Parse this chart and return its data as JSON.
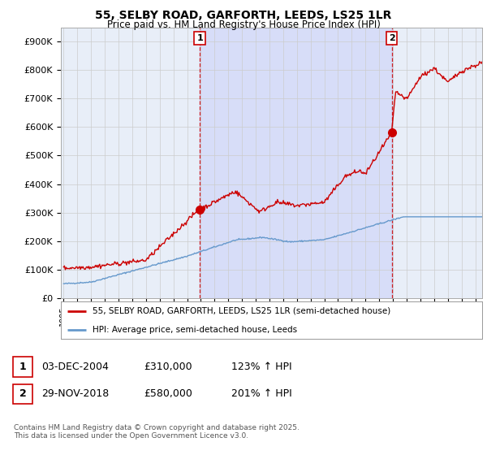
{
  "title": "55, SELBY ROAD, GARFORTH, LEEDS, LS25 1LR",
  "subtitle": "Price paid vs. HM Land Registry's House Price Index (HPI)",
  "ylabel_ticks": [
    "£0",
    "£100K",
    "£200K",
    "£300K",
    "£400K",
    "£500K",
    "£600K",
    "£700K",
    "£800K",
    "£900K"
  ],
  "ytick_values": [
    0,
    100000,
    200000,
    300000,
    400000,
    500000,
    600000,
    700000,
    800000,
    900000
  ],
  "ylim": [
    0,
    950000
  ],
  "xlim_start": 1994.8,
  "xlim_end": 2025.5,
  "marker1_x": 2004.92,
  "marker1_y": 310000,
  "marker2_x": 2018.91,
  "marker2_y": 580000,
  "vline1_x": 2004.92,
  "vline2_x": 2018.91,
  "legend_line1": "55, SELBY ROAD, GARFORTH, LEEDS, LS25 1LR (semi-detached house)",
  "legend_line2": "HPI: Average price, semi-detached house, Leeds",
  "table_row1": [
    "1",
    "03-DEC-2004",
    "£310,000",
    "123% ↑ HPI"
  ],
  "table_row2": [
    "2",
    "29-NOV-2018",
    "£580,000",
    "201% ↑ HPI"
  ],
  "footer": "Contains HM Land Registry data © Crown copyright and database right 2025.\nThis data is licensed under the Open Government Licence v3.0.",
  "red_color": "#cc0000",
  "blue_color": "#6699cc",
  "grid_color": "#cccccc",
  "background_color": "#ffffff",
  "plot_bg_color": "#e8eef8"
}
